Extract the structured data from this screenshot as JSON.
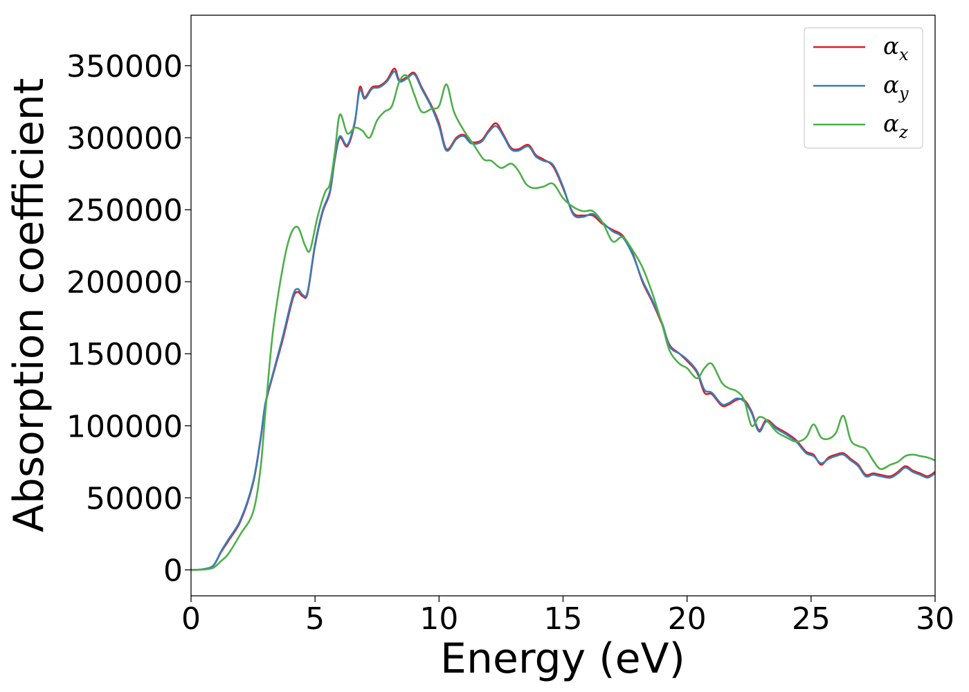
{
  "chart_data": {
    "type": "line",
    "title": "",
    "xlabel": "Energy (eV)",
    "ylabel": "Absorption coefficient",
    "xlim": [
      0,
      30
    ],
    "ylim": [
      -18000,
      385000
    ],
    "xticks": [
      0,
      5,
      10,
      15,
      20,
      25,
      30
    ],
    "yticks": [
      0,
      50000,
      100000,
      150000,
      200000,
      250000,
      300000,
      350000
    ],
    "grid": false,
    "legend_position": "top-right",
    "series": [
      {
        "name": "α_x",
        "label_main": "α",
        "label_sub": "x",
        "color": "#e41a1c",
        "x": [
          0,
          0.5,
          0.9,
          1.2,
          1.5,
          2.0,
          2.5,
          2.8,
          3.0,
          3.3,
          3.7,
          4.1,
          4.3,
          4.5,
          4.7,
          5.0,
          5.3,
          5.6,
          5.8,
          6.0,
          6.3,
          6.6,
          6.8,
          7.0,
          7.3,
          7.6,
          7.9,
          8.2,
          8.4,
          8.7,
          9.0,
          9.3,
          9.7,
          10.0,
          10.3,
          10.7,
          11.0,
          11.3,
          11.7,
          12.0,
          12.3,
          12.6,
          12.9,
          13.2,
          13.6,
          13.9,
          14.2,
          14.6,
          15.0,
          15.4,
          15.8,
          16.2,
          16.6,
          17.0,
          17.4,
          17.8,
          18.2,
          18.6,
          19.0,
          19.3,
          19.7,
          20.0,
          20.4,
          20.7,
          21.0,
          21.4,
          21.7,
          22.0,
          22.3,
          22.6,
          22.9,
          23.2,
          23.6,
          24.0,
          24.4,
          24.8,
          25.1,
          25.4,
          25.7,
          26.0,
          26.3,
          26.6,
          26.9,
          27.2,
          27.5,
          27.8,
          28.2,
          28.5,
          28.8,
          29.1,
          29.4,
          29.7,
          30.0
        ],
        "y": [
          0,
          500,
          3000,
          12000,
          20000,
          34000,
          60000,
          90000,
          115000,
          135000,
          160000,
          188000,
          193000,
          190000,
          192000,
          225000,
          248000,
          262000,
          285000,
          300000,
          294000,
          310000,
          335000,
          328000,
          335000,
          336000,
          340000,
          348000,
          340000,
          342000,
          345000,
          335000,
          322000,
          310000,
          292000,
          300000,
          302000,
          297000,
          298000,
          305000,
          310000,
          302000,
          293000,
          292000,
          295000,
          288000,
          285000,
          280000,
          265000,
          248000,
          246000,
          246000,
          240000,
          236000,
          232000,
          220000,
          200000,
          186000,
          170000,
          156000,
          150000,
          145000,
          137000,
          123000,
          122000,
          114000,
          115000,
          118000,
          118000,
          110000,
          97000,
          104000,
          99000,
          95000,
          90000,
          82000,
          80000,
          73000,
          78000,
          80000,
          81000,
          77000,
          73000,
          66000,
          67000,
          66000,
          65000,
          68000,
          72000,
          69000,
          67000,
          65000,
          68000
        ]
      },
      {
        "name": "α_y",
        "label_main": "α",
        "label_sub": "y",
        "color": "#377eb8",
        "x": [
          0,
          0.5,
          0.9,
          1.2,
          1.5,
          2.0,
          2.5,
          2.8,
          3.0,
          3.3,
          3.7,
          4.1,
          4.3,
          4.5,
          4.7,
          5.0,
          5.3,
          5.6,
          5.8,
          6.0,
          6.3,
          6.6,
          6.8,
          7.0,
          7.3,
          7.6,
          7.9,
          8.2,
          8.4,
          8.7,
          9.0,
          9.3,
          9.7,
          10.0,
          10.3,
          10.7,
          11.0,
          11.3,
          11.7,
          12.0,
          12.3,
          12.6,
          12.9,
          13.2,
          13.6,
          13.9,
          14.2,
          14.6,
          15.0,
          15.4,
          15.8,
          16.2,
          16.6,
          17.0,
          17.4,
          17.8,
          18.2,
          18.6,
          19.0,
          19.3,
          19.7,
          20.0,
          20.4,
          20.7,
          21.0,
          21.4,
          21.7,
          22.0,
          22.3,
          22.6,
          22.9,
          23.2,
          23.6,
          24.0,
          24.4,
          24.8,
          25.1,
          25.4,
          25.7,
          26.0,
          26.3,
          26.6,
          26.9,
          27.2,
          27.5,
          27.8,
          28.2,
          28.5,
          28.8,
          29.1,
          29.4,
          29.7,
          30.0
        ],
        "y": [
          0,
          500,
          3000,
          12500,
          21000,
          35000,
          61000,
          91000,
          116000,
          136000,
          162000,
          190000,
          195000,
          191000,
          193000,
          226000,
          249000,
          263000,
          286000,
          301000,
          295000,
          311000,
          333000,
          327000,
          334000,
          335000,
          339000,
          346000,
          339000,
          341000,
          344000,
          334000,
          321000,
          308000,
          291000,
          299000,
          301000,
          296000,
          297000,
          304000,
          308000,
          301000,
          292000,
          291000,
          294000,
          287000,
          284000,
          281000,
          266000,
          247000,
          245000,
          247000,
          241000,
          235000,
          231000,
          219000,
          201000,
          187000,
          171000,
          155000,
          150000,
          146000,
          138000,
          125000,
          123000,
          115000,
          116000,
          119000,
          117000,
          109000,
          96000,
          103000,
          98000,
          94000,
          89000,
          81000,
          79000,
          74000,
          77000,
          79000,
          80000,
          76000,
          72000,
          65000,
          66000,
          65000,
          64000,
          67000,
          71000,
          68000,
          66000,
          64000,
          67000
        ]
      },
      {
        "name": "α_z",
        "label_main": "α",
        "label_sub": "z",
        "color": "#4daf4a",
        "x": [
          0,
          0.5,
          0.9,
          1.2,
          1.5,
          2.0,
          2.5,
          2.8,
          3.0,
          3.3,
          3.7,
          4.0,
          4.3,
          4.6,
          4.8,
          5.1,
          5.4,
          5.6,
          5.8,
          6.0,
          6.3,
          6.6,
          6.9,
          7.2,
          7.5,
          7.8,
          8.1,
          8.4,
          8.7,
          9.0,
          9.3,
          9.7,
          10.0,
          10.3,
          10.6,
          11.0,
          11.4,
          11.8,
          12.1,
          12.5,
          12.9,
          13.2,
          13.5,
          13.8,
          14.2,
          14.6,
          15.0,
          15.4,
          15.8,
          16.2,
          16.6,
          17.0,
          17.4,
          17.8,
          18.2,
          18.6,
          19.0,
          19.3,
          19.7,
          20.0,
          20.4,
          20.7,
          21.0,
          21.4,
          21.7,
          22.0,
          22.3,
          22.6,
          22.9,
          23.2,
          23.6,
          24.0,
          24.4,
          24.8,
          25.1,
          25.4,
          25.7,
          26.0,
          26.3,
          26.6,
          26.9,
          27.2,
          27.5,
          27.8,
          28.2,
          28.5,
          28.8,
          29.1,
          29.4,
          29.7,
          30.0
        ],
        "y": [
          0,
          200,
          1500,
          6000,
          11000,
          25000,
          40000,
          70000,
          110000,
          165000,
          210000,
          232000,
          238000,
          225000,
          222000,
          245000,
          262000,
          268000,
          290000,
          316000,
          303000,
          307000,
          305000,
          300000,
          312000,
          318000,
          322000,
          339000,
          343000,
          330000,
          318000,
          320000,
          322000,
          337000,
          318000,
          305000,
          295000,
          285000,
          284000,
          279000,
          282000,
          277000,
          268000,
          265000,
          266000,
          268000,
          258000,
          252000,
          249000,
          249000,
          241000,
          228000,
          231000,
          222000,
          210000,
          192000,
          170000,
          152000,
          143000,
          140000,
          133000,
          140000,
          143000,
          130000,
          126000,
          124000,
          118000,
          100000,
          106000,
          104000,
          96000,
          92000,
          89000,
          92000,
          101000,
          92000,
          91000,
          95000,
          107000,
          90000,
          86000,
          84000,
          76000,
          70000,
          73000,
          75000,
          79000,
          80000,
          79000,
          78000,
          76000
        ]
      }
    ]
  }
}
